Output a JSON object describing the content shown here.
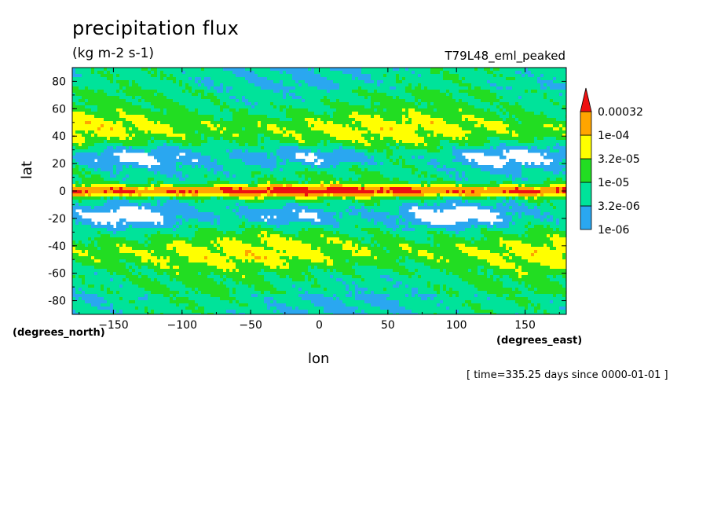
{
  "chart_data": {
    "type": "heatmap",
    "title": "precipitation flux",
    "units": "(kg m-2 s-1)",
    "dataset": "T79L48_eml_peaked",
    "xlabel": "lon",
    "xunits": "(degrees_east)",
    "ylabel": "lat",
    "yunits": "(degrees_north)",
    "xlim": [
      -180,
      180
    ],
    "ylim": [
      -90,
      90
    ],
    "x_ticks": [
      -150,
      -100,
      -50,
      0,
      50,
      100,
      150
    ],
    "y_ticks": [
      80,
      60,
      40,
      20,
      0,
      -20,
      -40,
      -60,
      -80
    ],
    "timestamp": "[ time=335.25 days since 0000-01-01 ]",
    "colorbar": {
      "levels": [
        "1e-06",
        "3.2e-06",
        "1e-05",
        "3.2e-05",
        "1e-04",
        "0.00032"
      ],
      "colors": [
        "#2aa7f0",
        "#00e39a",
        "#22dd22",
        "#ffff00",
        "#ffa500",
        "#ee1111"
      ]
    }
  }
}
